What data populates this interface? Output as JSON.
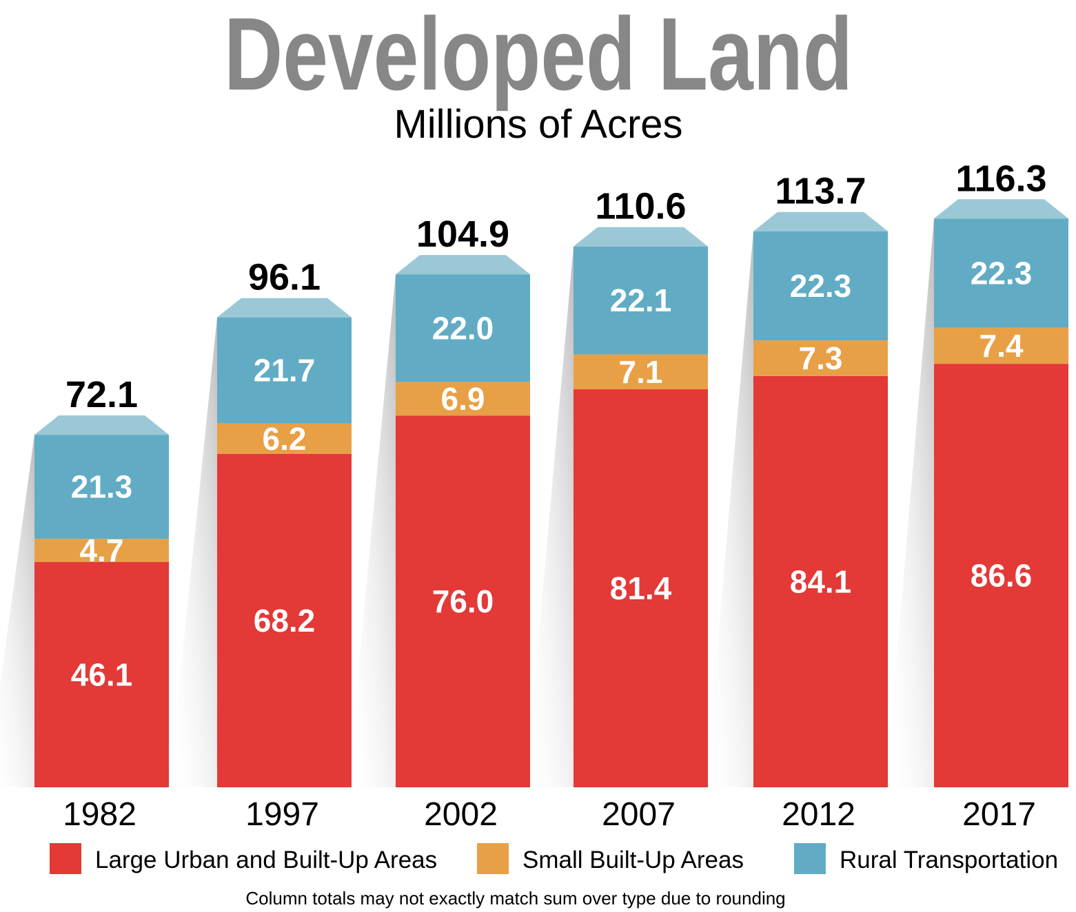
{
  "chart_data": {
    "type": "bar",
    "stacked": true,
    "title": "Developed Land",
    "subtitle": "Millions of Acres",
    "categories": [
      "1982",
      "1997",
      "2002",
      "2007",
      "2012",
      "2017"
    ],
    "series": [
      {
        "name": "Large Urban and Built-Up Areas",
        "color": "#e33937",
        "values": [
          46.1,
          68.2,
          76.0,
          81.4,
          84.1,
          86.6
        ],
        "labels": [
          "46.1",
          "68.2",
          "76.0",
          "81.4",
          "84.1",
          "86.6"
        ]
      },
      {
        "name": "Small Built-Up Areas",
        "color": "#e8a046",
        "values": [
          4.7,
          6.2,
          6.9,
          7.1,
          7.3,
          7.4
        ],
        "labels": [
          "4.7",
          "6.2",
          "6.9",
          "7.1",
          "7.3",
          "7.4"
        ]
      },
      {
        "name": "Rural Transportation",
        "color": "#61acc4",
        "values": [
          21.3,
          21.7,
          22.0,
          22.1,
          22.3,
          22.3
        ],
        "labels": [
          "21.3",
          "21.7",
          "22.0",
          "22.1",
          "22.3",
          "22.3"
        ]
      }
    ],
    "totals": [
      "72.1",
      "96.1",
      "104.9",
      "110.6",
      "113.7",
      "116.3"
    ],
    "cap_color": "#9bc8d6",
    "title_color": "#878787",
    "legend_position": "bottom",
    "grid": false,
    "footnote": "Column totals may not exactly match sum over type due to rounding"
  }
}
